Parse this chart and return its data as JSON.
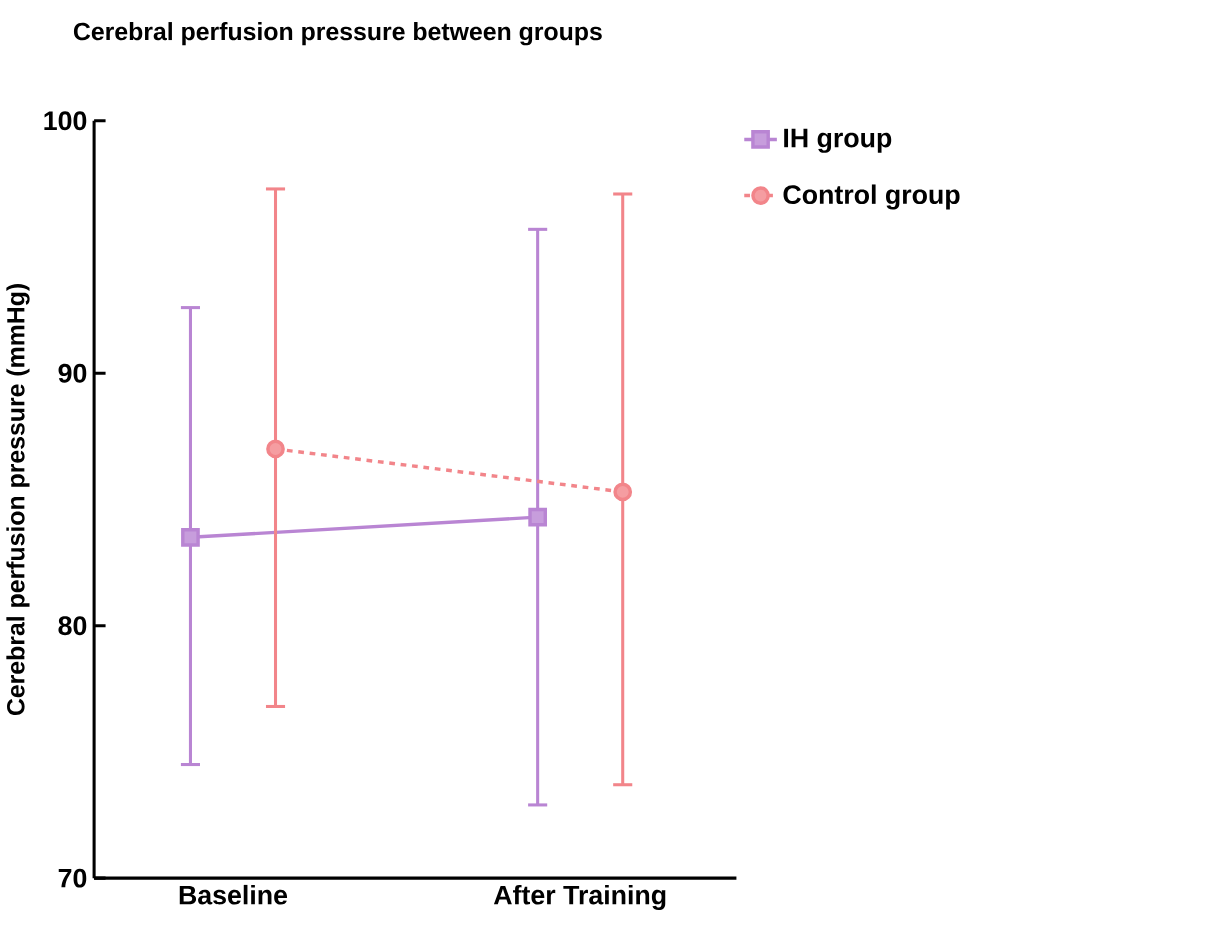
{
  "chart_data": {
    "type": "line",
    "title": "Cerebral perfusion pressure between groups",
    "ylabel": "Cerebral perfusion pressure (mmHg)",
    "categories": [
      "Baseline",
      "After Training"
    ],
    "series": [
      {
        "name": "IH group",
        "color": "#b985d3",
        "values": [
          83.5,
          84.3
        ],
        "errors": [
          [
            74.5,
            92.6
          ],
          [
            72.9,
            95.7
          ]
        ],
        "marker": "square",
        "line_style": "solid"
      },
      {
        "name": "Control group",
        "color": "#f2858a",
        "values": [
          87.0,
          85.3
        ],
        "errors": [
          [
            76.8,
            97.3
          ],
          [
            73.7,
            97.1
          ]
        ],
        "marker": "circle",
        "line_style": "dashed"
      }
    ],
    "ylim": [
      70,
      100
    ],
    "yticks": [
      70,
      80,
      90,
      100
    ],
    "grid": false,
    "legend": "top right"
  }
}
